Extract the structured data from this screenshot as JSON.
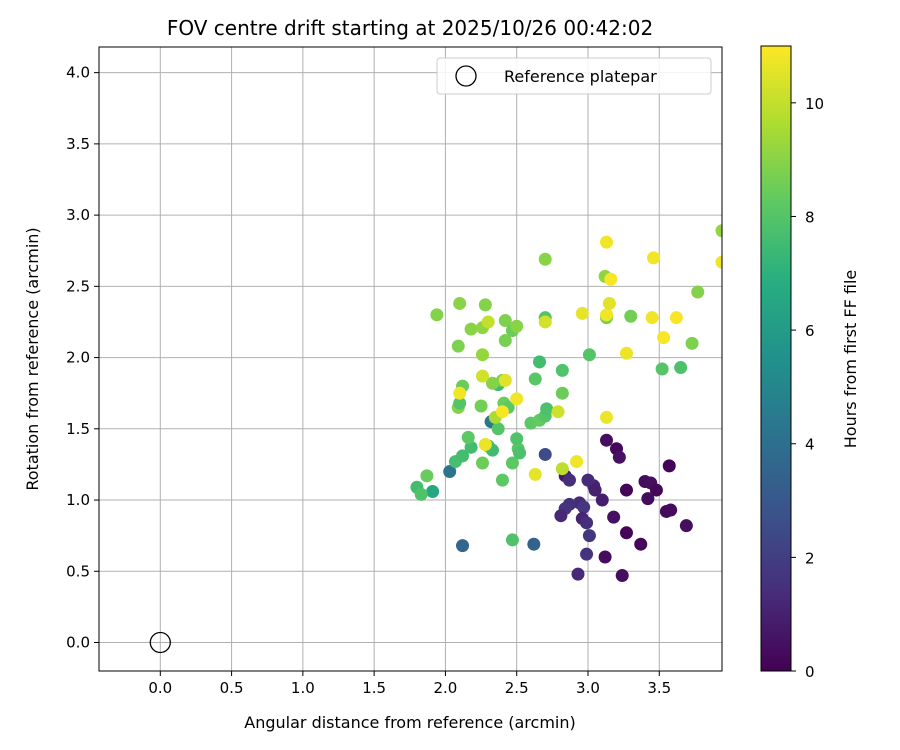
{
  "chart_data": {
    "type": "scatter",
    "title": "FOV centre drift starting at 2025/10/26 00:42:02",
    "xlabel": "Angular distance from reference (arcmin)",
    "ylabel": "Rotation from reference (arcmin)",
    "xlim": [
      -0.43,
      3.94
    ],
    "ylim": [
      -0.2,
      4.18
    ],
    "xticks": [
      "0.0",
      "0.5",
      "1.0",
      "1.5",
      "2.0",
      "2.5",
      "3.0",
      "3.5"
    ],
    "yticks": [
      "0.0",
      "0.5",
      "1.0",
      "1.5",
      "2.0",
      "2.5",
      "3.0",
      "3.5",
      "4.0"
    ],
    "grid": true,
    "legend": {
      "position": "top-right",
      "entries": [
        {
          "label": "Reference platepar",
          "marker": "open-circle"
        }
      ]
    },
    "reference_point": {
      "x": 0.0,
      "y": 0.0
    },
    "colorbar": {
      "label": "Hours from first FF file",
      "range": [
        0,
        11
      ],
      "ticks": [
        "0",
        "2",
        "4",
        "6",
        "8",
        "10"
      ],
      "colormap": "viridis"
    },
    "points": [
      {
        "x": 3.13,
        "y": 1.42,
        "h": 0.4
      },
      {
        "x": 3.2,
        "y": 1.36,
        "h": 0.2
      },
      {
        "x": 3.22,
        "y": 1.3,
        "h": 0.5
      },
      {
        "x": 3.4,
        "y": 1.13,
        "h": 0.3
      },
      {
        "x": 3.44,
        "y": 1.12,
        "h": 0.4
      },
      {
        "x": 3.27,
        "y": 1.07,
        "h": 0.1
      },
      {
        "x": 3.48,
        "y": 1.07,
        "h": 0.2
      },
      {
        "x": 3.42,
        "y": 1.01,
        "h": 0.3
      },
      {
        "x": 3.57,
        "y": 1.24,
        "h": 0.1
      },
      {
        "x": 3.55,
        "y": 0.92,
        "h": 0.2
      },
      {
        "x": 3.58,
        "y": 0.93,
        "h": 0.3
      },
      {
        "x": 3.69,
        "y": 0.82,
        "h": 0.4
      },
      {
        "x": 3.27,
        "y": 0.77,
        "h": 0.1
      },
      {
        "x": 3.37,
        "y": 0.69,
        "h": 0.2
      },
      {
        "x": 3.12,
        "y": 0.6,
        "h": 0.3
      },
      {
        "x": 3.24,
        "y": 0.47,
        "h": 0.4
      },
      {
        "x": 3.18,
        "y": 0.88,
        "h": 0.5
      },
      {
        "x": 3.1,
        "y": 1.0,
        "h": 0.9
      },
      {
        "x": 3.04,
        "y": 1.1,
        "h": 1.1
      },
      {
        "x": 3.0,
        "y": 1.14,
        "h": 1.3
      },
      {
        "x": 3.05,
        "y": 1.07,
        "h": 1.0
      },
      {
        "x": 2.84,
        "y": 1.17,
        "h": 0.8
      },
      {
        "x": 2.87,
        "y": 1.14,
        "h": 1.4
      },
      {
        "x": 2.94,
        "y": 0.98,
        "h": 1.3
      },
      {
        "x": 2.97,
        "y": 0.95,
        "h": 1.7
      },
      {
        "x": 2.87,
        "y": 0.97,
        "h": 1.5
      },
      {
        "x": 2.84,
        "y": 0.94,
        "h": 1.6
      },
      {
        "x": 2.81,
        "y": 0.89,
        "h": 1.2
      },
      {
        "x": 2.96,
        "y": 0.87,
        "h": 1.1
      },
      {
        "x": 2.99,
        "y": 0.84,
        "h": 1.4
      },
      {
        "x": 3.01,
        "y": 0.75,
        "h": 1.8
      },
      {
        "x": 2.99,
        "y": 0.62,
        "h": 1.6
      },
      {
        "x": 2.93,
        "y": 0.48,
        "h": 1.3
      },
      {
        "x": 2.7,
        "y": 1.32,
        "h": 2.5
      },
      {
        "x": 2.62,
        "y": 0.69,
        "h": 3.5
      },
      {
        "x": 2.12,
        "y": 0.68,
        "h": 3.6
      },
      {
        "x": 2.03,
        "y": 1.2,
        "h": 4.2
      },
      {
        "x": 2.32,
        "y": 1.55,
        "h": 4.4
      },
      {
        "x": 1.91,
        "y": 1.06,
        "h": 6.5
      },
      {
        "x": 1.8,
        "y": 1.09,
        "h": 7.6
      },
      {
        "x": 1.83,
        "y": 1.04,
        "h": 7.9
      },
      {
        "x": 1.87,
        "y": 1.17,
        "h": 8.4
      },
      {
        "x": 2.07,
        "y": 1.27,
        "h": 7.7
      },
      {
        "x": 2.12,
        "y": 1.31,
        "h": 7.6
      },
      {
        "x": 2.18,
        "y": 1.37,
        "h": 7.6
      },
      {
        "x": 2.16,
        "y": 1.44,
        "h": 8.2
      },
      {
        "x": 2.26,
        "y": 1.26,
        "h": 8.5
      },
      {
        "x": 2.3,
        "y": 1.38,
        "h": 8.0
      },
      {
        "x": 2.33,
        "y": 1.35,
        "h": 7.5
      },
      {
        "x": 2.4,
        "y": 1.14,
        "h": 8.2
      },
      {
        "x": 2.47,
        "y": 1.26,
        "h": 8.2
      },
      {
        "x": 2.51,
        "y": 1.36,
        "h": 8.1
      },
      {
        "x": 2.52,
        "y": 1.33,
        "h": 7.8
      },
      {
        "x": 2.5,
        "y": 1.43,
        "h": 7.9
      },
      {
        "x": 2.47,
        "y": 0.72,
        "h": 7.9
      },
      {
        "x": 2.6,
        "y": 1.54,
        "h": 8.2
      },
      {
        "x": 2.66,
        "y": 1.56,
        "h": 8.3
      },
      {
        "x": 2.7,
        "y": 1.59,
        "h": 8.0
      },
      {
        "x": 2.71,
        "y": 1.64,
        "h": 7.8
      },
      {
        "x": 2.63,
        "y": 1.85,
        "h": 8.1
      },
      {
        "x": 2.82,
        "y": 1.75,
        "h": 8.5
      },
      {
        "x": 2.82,
        "y": 1.91,
        "h": 7.9
      },
      {
        "x": 2.66,
        "y": 1.97,
        "h": 7.6
      },
      {
        "x": 2.37,
        "y": 1.81,
        "h": 7.5
      },
      {
        "x": 2.4,
        "y": 1.84,
        "h": 8.8
      },
      {
        "x": 2.33,
        "y": 1.82,
        "h": 8.9
      },
      {
        "x": 2.37,
        "y": 1.5,
        "h": 8.0
      },
      {
        "x": 2.35,
        "y": 1.58,
        "h": 9.6
      },
      {
        "x": 2.41,
        "y": 1.68,
        "h": 8.5
      },
      {
        "x": 2.44,
        "y": 1.65,
        "h": 8.2
      },
      {
        "x": 2.25,
        "y": 1.66,
        "h": 8.6
      },
      {
        "x": 2.09,
        "y": 1.65,
        "h": 8.9
      },
      {
        "x": 2.1,
        "y": 1.68,
        "h": 8.0
      },
      {
        "x": 2.12,
        "y": 1.8,
        "h": 8.5
      },
      {
        "x": 2.09,
        "y": 2.08,
        "h": 8.8
      },
      {
        "x": 2.1,
        "y": 2.38,
        "h": 9.0
      },
      {
        "x": 1.94,
        "y": 2.3,
        "h": 8.9
      },
      {
        "x": 2.18,
        "y": 2.2,
        "h": 9.0
      },
      {
        "x": 2.26,
        "y": 2.02,
        "h": 9.2
      },
      {
        "x": 2.26,
        "y": 2.21,
        "h": 9.1
      },
      {
        "x": 2.28,
        "y": 2.37,
        "h": 8.9
      },
      {
        "x": 2.3,
        "y": 2.25,
        "h": 10.0
      },
      {
        "x": 2.42,
        "y": 2.12,
        "h": 8.7
      },
      {
        "x": 2.42,
        "y": 2.26,
        "h": 8.8
      },
      {
        "x": 2.47,
        "y": 2.19,
        "h": 8.5
      },
      {
        "x": 2.5,
        "y": 2.22,
        "h": 9.0
      },
      {
        "x": 2.7,
        "y": 2.28,
        "h": 8.0
      },
      {
        "x": 2.7,
        "y": 2.25,
        "h": 10.3
      },
      {
        "x": 2.7,
        "y": 2.69,
        "h": 9.0
      },
      {
        "x": 2.96,
        "y": 2.31,
        "h": 10.6
      },
      {
        "x": 3.01,
        "y": 2.02,
        "h": 8.0
      },
      {
        "x": 3.12,
        "y": 2.57,
        "h": 9.1
      },
      {
        "x": 3.13,
        "y": 2.28,
        "h": 8.7
      },
      {
        "x": 3.13,
        "y": 2.3,
        "h": 10.8
      },
      {
        "x": 3.15,
        "y": 2.38,
        "h": 10.5
      },
      {
        "x": 3.16,
        "y": 2.55,
        "h": 10.9
      },
      {
        "x": 3.13,
        "y": 2.81,
        "h": 10.8
      },
      {
        "x": 3.3,
        "y": 2.29,
        "h": 8.6
      },
      {
        "x": 3.27,
        "y": 2.03,
        "h": 10.7
      },
      {
        "x": 3.45,
        "y": 2.28,
        "h": 10.8
      },
      {
        "x": 3.46,
        "y": 2.7,
        "h": 10.8
      },
      {
        "x": 3.53,
        "y": 2.14,
        "h": 10.9
      },
      {
        "x": 3.52,
        "y": 1.92,
        "h": 8.0
      },
      {
        "x": 3.62,
        "y": 2.28,
        "h": 10.9
      },
      {
        "x": 3.65,
        "y": 1.93,
        "h": 7.8
      },
      {
        "x": 3.73,
        "y": 2.1,
        "h": 8.8
      },
      {
        "x": 3.77,
        "y": 2.46,
        "h": 8.9
      },
      {
        "x": 3.94,
        "y": 2.89,
        "h": 9.2
      },
      {
        "x": 3.94,
        "y": 2.67,
        "h": 10.8
      },
      {
        "x": 3.13,
        "y": 1.58,
        "h": 10.7
      },
      {
        "x": 2.79,
        "y": 1.62,
        "h": 10.2
      },
      {
        "x": 2.26,
        "y": 1.87,
        "h": 10.2
      },
      {
        "x": 2.1,
        "y": 1.75,
        "h": 10.8
      },
      {
        "x": 2.4,
        "y": 1.62,
        "h": 10.9
      },
      {
        "x": 2.42,
        "y": 1.84,
        "h": 10.5
      },
      {
        "x": 2.5,
        "y": 1.71,
        "h": 10.8
      },
      {
        "x": 2.28,
        "y": 1.39,
        "h": 10.7
      },
      {
        "x": 2.63,
        "y": 1.18,
        "h": 10.6
      },
      {
        "x": 2.82,
        "y": 1.22,
        "h": 9.9
      },
      {
        "x": 2.92,
        "y": 1.27,
        "h": 10.8
      }
    ]
  }
}
